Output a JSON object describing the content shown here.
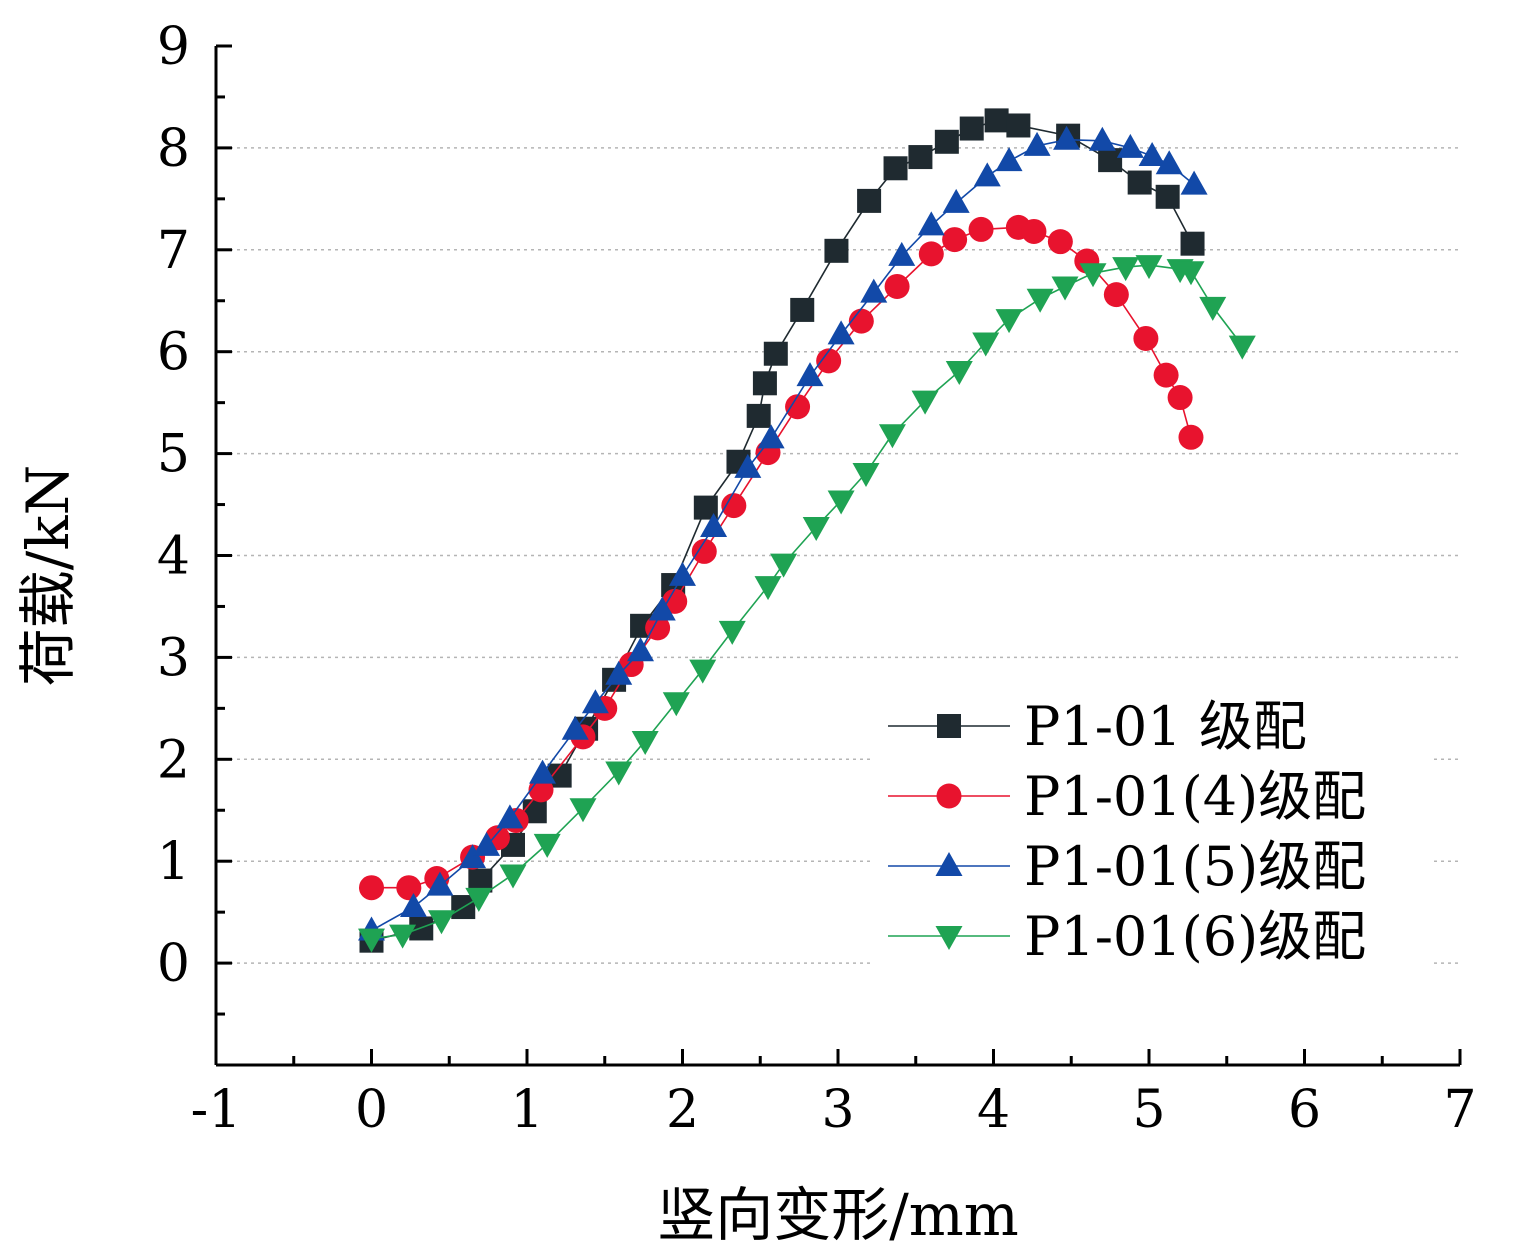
{
  "chart_data": {
    "type": "line",
    "xlabel": "竖向变形/mm",
    "ylabel": "荷载/kN",
    "xlim": [
      -1,
      7
    ],
    "ylim": [
      -1,
      9
    ],
    "x_ticks": [
      "-1",
      "0",
      "1",
      "2",
      "3",
      "4",
      "5",
      "6",
      "7"
    ],
    "y_ticks": [
      "0",
      "1",
      "2",
      "3",
      "4",
      "5",
      "6",
      "7",
      "8",
      "9"
    ],
    "grid": "horizontal dotted",
    "legend_position": "lower-right",
    "series": [
      {
        "name": "P1-01 级配",
        "marker": "square",
        "color": "#1f2a30",
        "points": [
          [
            0.0,
            0.22
          ],
          [
            0.32,
            0.34
          ],
          [
            0.59,
            0.55
          ],
          [
            0.7,
            0.81
          ],
          [
            0.91,
            1.16
          ],
          [
            1.05,
            1.49
          ],
          [
            1.21,
            1.84
          ],
          [
            1.38,
            2.3
          ],
          [
            1.56,
            2.78
          ],
          [
            1.74,
            3.31
          ],
          [
            1.94,
            3.71
          ],
          [
            2.15,
            4.47
          ],
          [
            2.36,
            4.92
          ],
          [
            2.49,
            5.37
          ],
          [
            2.53,
            5.69
          ],
          [
            2.6,
            5.98
          ],
          [
            2.77,
            6.41
          ],
          [
            2.99,
            6.99
          ],
          [
            3.2,
            7.48
          ],
          [
            3.37,
            7.8
          ],
          [
            3.53,
            7.91
          ],
          [
            3.7,
            8.06
          ],
          [
            3.86,
            8.19
          ],
          [
            4.02,
            8.27
          ],
          [
            4.16,
            8.22
          ],
          [
            4.48,
            8.12
          ],
          [
            4.75,
            7.88
          ],
          [
            4.94,
            7.66
          ],
          [
            5.12,
            7.52
          ],
          [
            5.28,
            7.06
          ]
        ]
      },
      {
        "name": "P1-01(4)级配",
        "marker": "circle",
        "color": "#e8132e",
        "points": [
          [
            0.0,
            0.74
          ],
          [
            0.24,
            0.74
          ],
          [
            0.42,
            0.83
          ],
          [
            0.65,
            1.04
          ],
          [
            0.81,
            1.23
          ],
          [
            0.93,
            1.4
          ],
          [
            1.09,
            1.7
          ],
          [
            1.36,
            2.22
          ],
          [
            1.5,
            2.5
          ],
          [
            1.67,
            2.93
          ],
          [
            1.84,
            3.29
          ],
          [
            1.95,
            3.55
          ],
          [
            2.14,
            4.04
          ],
          [
            2.33,
            4.49
          ],
          [
            2.55,
            5.01
          ],
          [
            2.74,
            5.46
          ],
          [
            2.94,
            5.91
          ],
          [
            3.15,
            6.3
          ],
          [
            3.38,
            6.64
          ],
          [
            3.6,
            6.96
          ],
          [
            3.75,
            7.1
          ],
          [
            3.92,
            7.2
          ],
          [
            4.16,
            7.22
          ],
          [
            4.26,
            7.18
          ],
          [
            4.43,
            7.08
          ],
          [
            4.6,
            6.89
          ],
          [
            4.79,
            6.56
          ],
          [
            4.98,
            6.13
          ],
          [
            5.11,
            5.77
          ],
          [
            5.2,
            5.55
          ],
          [
            5.27,
            5.16
          ]
        ]
      },
      {
        "name": "P1-01(5)级配",
        "marker": "triangle-up",
        "color": "#1249a8",
        "points": [
          [
            0.0,
            0.32
          ],
          [
            0.27,
            0.55
          ],
          [
            0.44,
            0.76
          ],
          [
            0.65,
            1.03
          ],
          [
            0.74,
            1.15
          ],
          [
            0.89,
            1.42
          ],
          [
            1.1,
            1.86
          ],
          [
            1.31,
            2.29
          ],
          [
            1.44,
            2.55
          ],
          [
            1.59,
            2.83
          ],
          [
            1.73,
            3.06
          ],
          [
            1.87,
            3.46
          ],
          [
            2.0,
            3.8
          ],
          [
            2.2,
            4.28
          ],
          [
            2.42,
            4.86
          ],
          [
            2.57,
            5.15
          ],
          [
            2.82,
            5.76
          ],
          [
            3.02,
            6.17
          ],
          [
            3.23,
            6.58
          ],
          [
            3.41,
            6.94
          ],
          [
            3.6,
            7.24
          ],
          [
            3.76,
            7.46
          ],
          [
            3.96,
            7.72
          ],
          [
            4.1,
            7.87
          ],
          [
            4.28,
            8.02
          ],
          [
            4.47,
            8.08
          ],
          [
            4.7,
            8.07
          ],
          [
            4.88,
            8.0
          ],
          [
            5.02,
            7.92
          ],
          [
            5.13,
            7.84
          ],
          [
            5.29,
            7.64
          ]
        ]
      },
      {
        "name": "P1-01(6)级配",
        "marker": "triangle-down",
        "color": "#1fa353",
        "points": [
          [
            0.0,
            0.24
          ],
          [
            0.2,
            0.28
          ],
          [
            0.45,
            0.42
          ],
          [
            0.69,
            0.64
          ],
          [
            0.91,
            0.87
          ],
          [
            1.13,
            1.17
          ],
          [
            1.36,
            1.52
          ],
          [
            1.59,
            1.88
          ],
          [
            1.76,
            2.18
          ],
          [
            1.96,
            2.56
          ],
          [
            2.13,
            2.88
          ],
          [
            2.32,
            3.26
          ],
          [
            2.55,
            3.7
          ],
          [
            2.65,
            3.92
          ],
          [
            2.86,
            4.28
          ],
          [
            3.02,
            4.54
          ],
          [
            3.18,
            4.81
          ],
          [
            3.35,
            5.19
          ],
          [
            3.56,
            5.52
          ],
          [
            3.78,
            5.81
          ],
          [
            3.95,
            6.09
          ],
          [
            4.1,
            6.32
          ],
          [
            4.3,
            6.52
          ],
          [
            4.46,
            6.64
          ],
          [
            4.64,
            6.77
          ],
          [
            4.85,
            6.83
          ],
          [
            5.0,
            6.85
          ],
          [
            5.2,
            6.81
          ],
          [
            5.27,
            6.79
          ],
          [
            5.41,
            6.44
          ],
          [
            5.6,
            6.06
          ]
        ]
      }
    ]
  }
}
